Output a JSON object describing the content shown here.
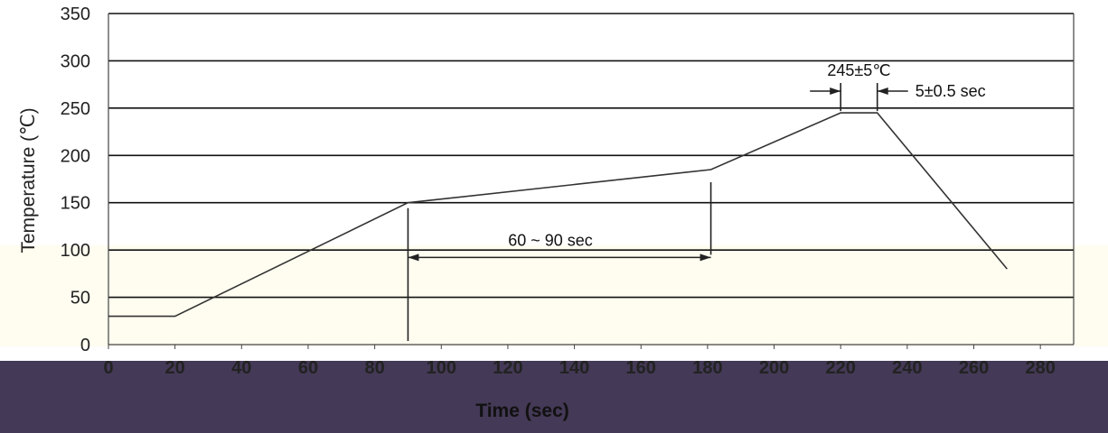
{
  "chart_data": {
    "type": "line",
    "xlabel": "Time (sec)",
    "ylabel": "Temperature (℃)",
    "xlim": [
      0,
      290
    ],
    "ylim": [
      0,
      350
    ],
    "x_ticks": [
      0,
      20,
      40,
      60,
      80,
      100,
      120,
      140,
      160,
      180,
      200,
      220,
      240,
      260,
      280
    ],
    "y_ticks": [
      0,
      50,
      100,
      150,
      200,
      250,
      300,
      350
    ],
    "grid": "horizontal",
    "series": [
      {
        "x": [
          0,
          20,
          90,
          181,
          220,
          231,
          270
        ],
        "y": [
          30,
          30,
          150,
          185,
          245,
          245,
          80
        ]
      }
    ],
    "annotations": {
      "peak_temp": "245±5℃",
      "peak_time": "5±0.5 sec",
      "soak_time": "60 ~ 90 sec"
    }
  },
  "colors": {
    "curve": "#333333",
    "overlay_panel": "#443956",
    "overlay_light": "#fffdf0"
  }
}
